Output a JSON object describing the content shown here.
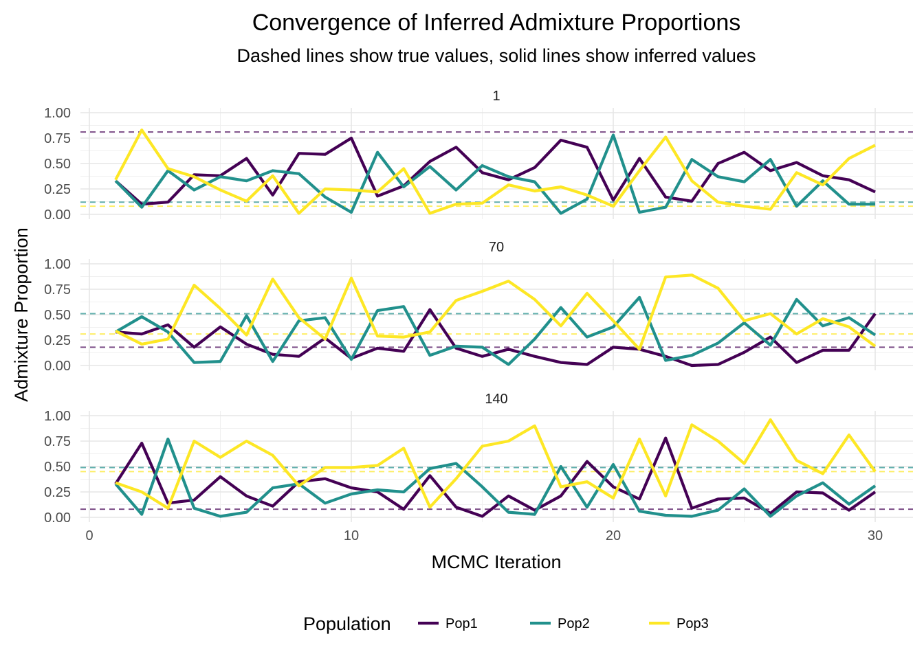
{
  "chart_data": {
    "type": "line",
    "title": "Convergence of Inferred Admixture Proportions",
    "subtitle": "Dashed lines show true values, solid lines show inferred values",
    "xlabel": "MCMC Iteration",
    "ylabel": "Admixture Proportion",
    "xlim": [
      0,
      30
    ],
    "ylim": [
      0,
      1
    ],
    "x_ticks": [
      "0",
      "10",
      "20",
      "30"
    ],
    "y_ticks": [
      "0.00",
      "0.25",
      "0.50",
      "0.75",
      "1.00"
    ],
    "legend": {
      "title": "Population",
      "position": "bottom"
    },
    "series_names": [
      "Pop1",
      "Pop2",
      "Pop3"
    ],
    "colors": {
      "Pop1": "#440154",
      "Pop2": "#21908C",
      "Pop3": "#FDE725"
    },
    "x": [
      1,
      2,
      3,
      4,
      5,
      6,
      7,
      8,
      9,
      10,
      11,
      12,
      13,
      14,
      15,
      16,
      17,
      18,
      19,
      20,
      21,
      22,
      23,
      24,
      25,
      26,
      27,
      28,
      29,
      30
    ],
    "panels": [
      {
        "label": "1",
        "true_values": {
          "Pop1": 0.81,
          "Pop2": 0.12,
          "Pop3": 0.08
        },
        "series": [
          {
            "name": "Pop1",
            "values": [
              0.33,
              0.1,
              0.12,
              0.39,
              0.38,
              0.55,
              0.19,
              0.6,
              0.59,
              0.75,
              0.18,
              0.28,
              0.52,
              0.66,
              0.41,
              0.34,
              0.46,
              0.73,
              0.66,
              0.14,
              0.55,
              0.17,
              0.13,
              0.5,
              0.61,
              0.43,
              0.51,
              0.38,
              0.34,
              0.22
            ]
          },
          {
            "name": "Pop2",
            "values": [
              0.33,
              0.07,
              0.43,
              0.24,
              0.37,
              0.33,
              0.43,
              0.4,
              0.17,
              0.02,
              0.61,
              0.27,
              0.47,
              0.24,
              0.48,
              0.37,
              0.32,
              0.01,
              0.15,
              0.78,
              0.02,
              0.07,
              0.54,
              0.37,
              0.32,
              0.54,
              0.08,
              0.33,
              0.1,
              0.1
            ]
          },
          {
            "name": "Pop3",
            "values": [
              0.34,
              0.83,
              0.45,
              0.37,
              0.24,
              0.13,
              0.38,
              0.01,
              0.25,
              0.24,
              0.22,
              0.45,
              0.01,
              0.1,
              0.11,
              0.29,
              0.23,
              0.27,
              0.19,
              0.08,
              0.43,
              0.76,
              0.33,
              0.12,
              0.08,
              0.05,
              0.41,
              0.29,
              0.55,
              0.68
            ]
          }
        ]
      },
      {
        "label": "70",
        "true_values": {
          "Pop1": 0.18,
          "Pop2": 0.51,
          "Pop3": 0.31
        },
        "series": [
          {
            "name": "Pop1",
            "values": [
              0.33,
              0.31,
              0.4,
              0.18,
              0.38,
              0.21,
              0.11,
              0.09,
              0.27,
              0.07,
              0.17,
              0.14,
              0.55,
              0.17,
              0.09,
              0.16,
              0.09,
              0.03,
              0.01,
              0.18,
              0.16,
              0.09,
              0.0,
              0.01,
              0.13,
              0.28,
              0.03,
              0.15,
              0.15,
              0.51
            ]
          },
          {
            "name": "Pop2",
            "values": [
              0.33,
              0.48,
              0.33,
              0.03,
              0.04,
              0.49,
              0.04,
              0.44,
              0.47,
              0.06,
              0.54,
              0.58,
              0.1,
              0.19,
              0.18,
              0.01,
              0.26,
              0.57,
              0.28,
              0.38,
              0.67,
              0.05,
              0.1,
              0.22,
              0.42,
              0.2,
              0.65,
              0.39,
              0.47,
              0.3
            ]
          },
          {
            "name": "Pop3",
            "values": [
              0.34,
              0.21,
              0.26,
              0.79,
              0.56,
              0.3,
              0.85,
              0.47,
              0.26,
              0.86,
              0.29,
              0.28,
              0.33,
              0.64,
              0.73,
              0.83,
              0.65,
              0.39,
              0.71,
              0.44,
              0.16,
              0.87,
              0.89,
              0.76,
              0.44,
              0.51,
              0.31,
              0.46,
              0.38,
              0.19
            ]
          }
        ]
      },
      {
        "label": "140",
        "true_values": {
          "Pop1": 0.08,
          "Pop2": 0.49,
          "Pop3": 0.45
        },
        "series": [
          {
            "name": "Pop1",
            "values": [
              0.33,
              0.73,
              0.14,
              0.17,
              0.4,
              0.21,
              0.11,
              0.35,
              0.38,
              0.29,
              0.25,
              0.08,
              0.41,
              0.1,
              0.01,
              0.21,
              0.07,
              0.21,
              0.55,
              0.3,
              0.18,
              0.78,
              0.09,
              0.18,
              0.19,
              0.04,
              0.25,
              0.24,
              0.07,
              0.25
            ]
          },
          {
            "name": "Pop2",
            "values": [
              0.33,
              0.03,
              0.77,
              0.09,
              0.01,
              0.05,
              0.29,
              0.33,
              0.14,
              0.23,
              0.27,
              0.25,
              0.48,
              0.53,
              0.3,
              0.05,
              0.03,
              0.5,
              0.1,
              0.52,
              0.06,
              0.02,
              0.01,
              0.07,
              0.28,
              0.01,
              0.21,
              0.34,
              0.13,
              0.31
            ]
          },
          {
            "name": "Pop3",
            "values": [
              0.34,
              0.25,
              0.09,
              0.75,
              0.59,
              0.75,
              0.61,
              0.31,
              0.49,
              0.49,
              0.51,
              0.68,
              0.1,
              0.38,
              0.7,
              0.75,
              0.9,
              0.3,
              0.35,
              0.19,
              0.77,
              0.21,
              0.91,
              0.75,
              0.53,
              0.96,
              0.56,
              0.43,
              0.81,
              0.45
            ]
          }
        ]
      }
    ]
  }
}
